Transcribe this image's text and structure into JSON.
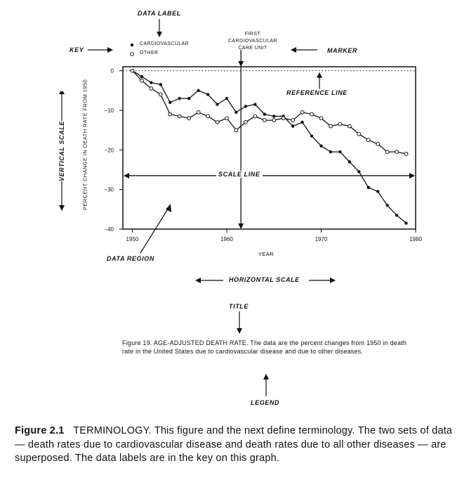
{
  "annotations": {
    "data_label": "DATA LABEL",
    "key": "KEY",
    "marker": "MARKER",
    "reference_line": "REFERENCE LINE",
    "scale_line": "SCALE LINE",
    "vertical_scale": "VERTICAL SCALE",
    "data_region": "DATA REGION",
    "horizontal_scale": "HORIZONTAL SCALE",
    "title": "TITLE",
    "legend": "LEGEND"
  },
  "marker_text": [
    "FIRST",
    "CARDIOVASCULAR",
    "CARE UNIT"
  ],
  "inner_figure_caption": "Figure 19.  AGE-ADJUSTED DEATH RATE. The data are the percent changes from 1950 in death rate in the United States due to cardiovascular disease and due to other diseases.",
  "bottom_caption": {
    "label": "Figure 2.1",
    "text": "TERMINOLOGY. This figure and the next define terminology. The two sets of data — death rates due to cardiovascular disease and death rates due to all other diseases — are superposed. The data labels are in the key on this graph."
  },
  "chart_data": {
    "type": "line",
    "xlabel": "YEAR",
    "ylabel": "PERCENT CHANGE IN DEATH RATE FROM 1950",
    "xlim": [
      1949,
      1980
    ],
    "ylim": [
      -40,
      1
    ],
    "xticks": [
      1950,
      1960,
      1970,
      1980
    ],
    "yticks": [
      0,
      -10,
      -20,
      -30,
      -40
    ],
    "reference_line_y": 0,
    "marker_x": 1961.5,
    "scale_line_y": -26.5,
    "series": [
      {
        "name": "CARDIOVASCULAR",
        "marker": "filled",
        "x": [
          1950,
          1951,
          1952,
          1953,
          1954,
          1955,
          1956,
          1957,
          1958,
          1959,
          1960,
          1961,
          1962,
          1963,
          1964,
          1965,
          1966,
          1967,
          1968,
          1969,
          1970,
          1971,
          1972,
          1973,
          1974,
          1975,
          1976,
          1977,
          1978,
          1979
        ],
        "values": [
          0,
          -1.5,
          -3,
          -3.5,
          -8,
          -7,
          -7,
          -5,
          -6,
          -8.5,
          -7,
          -10.5,
          -9,
          -8.5,
          -11,
          -11.5,
          -11.5,
          -14,
          -13,
          -16.5,
          -19,
          -20.5,
          -20.5,
          -23,
          -25.5,
          -29.5,
          -30.5,
          -34,
          -36.5,
          -38.5
        ]
      },
      {
        "name": "OTHER",
        "marker": "open",
        "x": [
          1950,
          1951,
          1952,
          1953,
          1954,
          1955,
          1956,
          1957,
          1958,
          1959,
          1960,
          1961,
          1962,
          1963,
          1964,
          1965,
          1966,
          1967,
          1968,
          1969,
          1970,
          1971,
          1972,
          1973,
          1974,
          1975,
          1976,
          1977,
          1978,
          1979
        ],
        "values": [
          0,
          -2.5,
          -4.5,
          -6,
          -11,
          -11.5,
          -12,
          -10.5,
          -11.5,
          -13,
          -12,
          -15,
          -13,
          -11.5,
          -12.5,
          -12.5,
          -12,
          -12.5,
          -10.5,
          -11,
          -12,
          -14,
          -13.5,
          -14,
          -16,
          -17.5,
          -18.5,
          -20.5,
          -20.5,
          -21
        ]
      }
    ]
  }
}
